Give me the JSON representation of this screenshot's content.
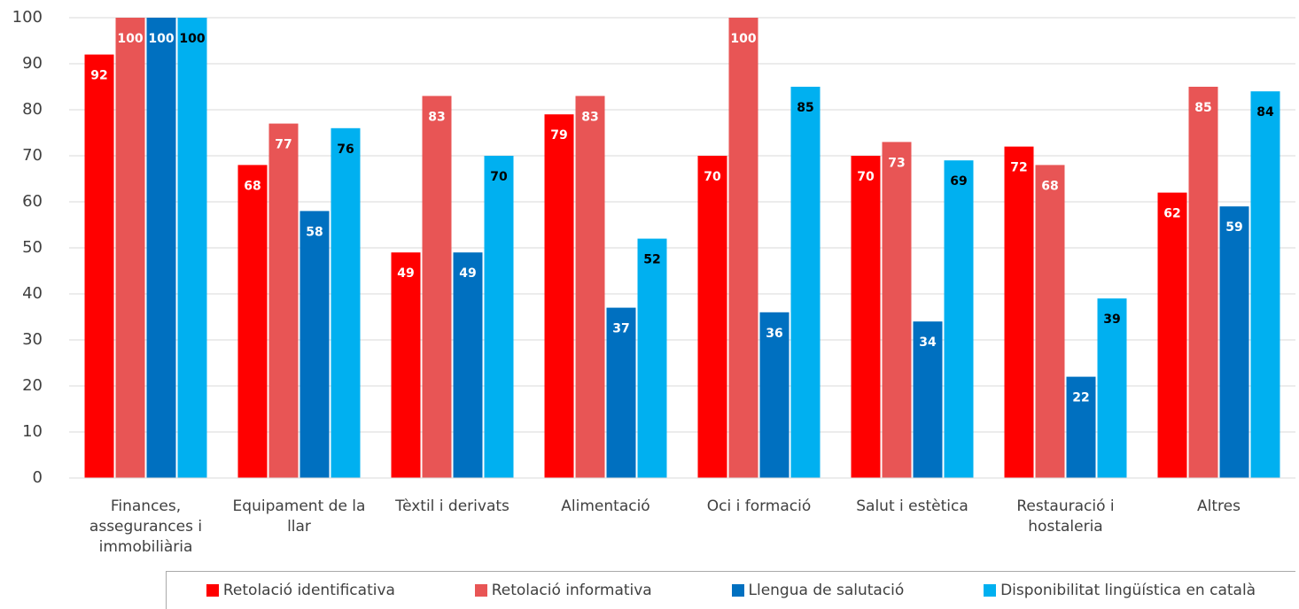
{
  "chart_data": {
    "type": "bar",
    "categories": [
      "Finances, assegurances i immobiliària",
      "Equipament de la llar",
      "Tèxtil i derivats",
      "Alimentació",
      "Oci i formació",
      "Salut i estètica",
      "Restauració i hostaleria",
      "Altres"
    ],
    "series": [
      {
        "name": "Retolació identificativa",
        "color": "#ff0000",
        "label_color": "#ffffff",
        "values": [
          92,
          68,
          49,
          79,
          70,
          70,
          72,
          62
        ]
      },
      {
        "name": "Retolació informativa",
        "color": "#e85555",
        "label_color": "#ffffff",
        "values": [
          100,
          77,
          83,
          83,
          100,
          73,
          68,
          85
        ]
      },
      {
        "name": "Llengua de salutació",
        "color": "#0070c0",
        "label_color": "#ffffff",
        "values": [
          100,
          58,
          49,
          37,
          36,
          34,
          22,
          59
        ]
      },
      {
        "name": "Disponibilitat lingüística en català",
        "color": "#00b0f0",
        "label_color": "#000000",
        "values": [
          100,
          76,
          70,
          52,
          85,
          69,
          39,
          84
        ]
      }
    ],
    "ylim": [
      0,
      100
    ],
    "yticks": [
      0,
      10,
      20,
      30,
      40,
      50,
      60,
      70,
      80,
      90,
      100
    ],
    "grid": true,
    "legend": "bottom"
  }
}
